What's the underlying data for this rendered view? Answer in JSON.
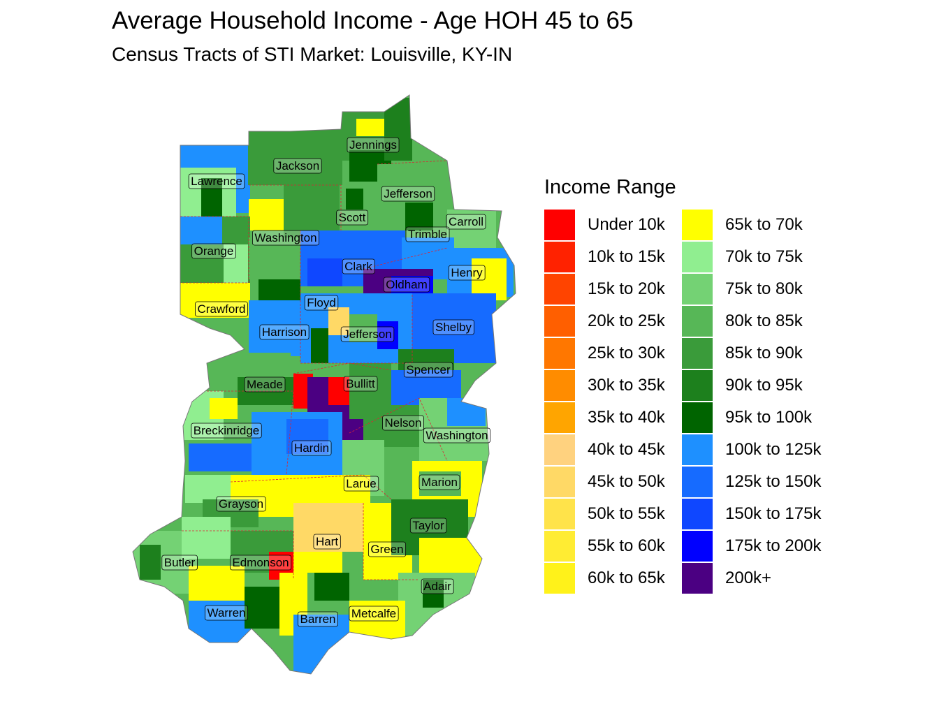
{
  "title": "Average Household Income - Age HOH 45 to 65",
  "subtitle": "Census Tracts of STI Market: Louisville, KY-IN",
  "legend": {
    "title": "Income Range",
    "items": [
      {
        "label": "Under 10k",
        "color": "#ff0000"
      },
      {
        "label": "10k to 15k",
        "color": "#ff2200"
      },
      {
        "label": "15k to 20k",
        "color": "#ff4400"
      },
      {
        "label": "20k to 25k",
        "color": "#ff5f00"
      },
      {
        "label": "25k to 30k",
        "color": "#ff7700"
      },
      {
        "label": "30k to 35k",
        "color": "#ff8c00"
      },
      {
        "label": "35k to 40k",
        "color": "#ffa500"
      },
      {
        "label": "40k to 45k",
        "color": "#ffd27f"
      },
      {
        "label": "45k to 50k",
        "color": "#ffd966"
      },
      {
        "label": "50k to 55k",
        "color": "#ffe34a"
      },
      {
        "label": "55k to 60k",
        "color": "#ffec33"
      },
      {
        "label": "60k to 65k",
        "color": "#fff21a"
      },
      {
        "label": "65k to 70k",
        "color": "#ffff00"
      },
      {
        "label": "70k to 75k",
        "color": "#90ee90"
      },
      {
        "label": "75k to 80k",
        "color": "#74d274"
      },
      {
        "label": "80k to 85k",
        "color": "#57b757"
      },
      {
        "label": "85k to 90k",
        "color": "#3a9b3a"
      },
      {
        "label": "90k to 95k",
        "color": "#1d801d"
      },
      {
        "label": "95k to 100k",
        "color": "#006400"
      },
      {
        "label": "100k to 125k",
        "color": "#1e90ff"
      },
      {
        "label": "125k to 150k",
        "color": "#166bff"
      },
      {
        "label": "150k to 175k",
        "color": "#0f47ff"
      },
      {
        "label": "175k to 200k",
        "color": "#0000ff"
      },
      {
        "label": "200k+",
        "color": "#4b0082"
      }
    ]
  },
  "counties": [
    {
      "name": "Jennings"
    },
    {
      "name": "Jackson"
    },
    {
      "name": "Lawrence"
    },
    {
      "name": "Jefferson"
    },
    {
      "name": "Scott"
    },
    {
      "name": "Carroll"
    },
    {
      "name": "Washington"
    },
    {
      "name": "Trimble"
    },
    {
      "name": "Orange"
    },
    {
      "name": "Clark"
    },
    {
      "name": "Henry"
    },
    {
      "name": "Oldham"
    },
    {
      "name": "Crawford"
    },
    {
      "name": "Floyd"
    },
    {
      "name": "Shelby"
    },
    {
      "name": "Harrison"
    },
    {
      "name": "Jefferson"
    },
    {
      "name": "Spencer"
    },
    {
      "name": "Meade"
    },
    {
      "name": "Bullitt"
    },
    {
      "name": "Nelson"
    },
    {
      "name": "Breckinridge"
    },
    {
      "name": "Washington"
    },
    {
      "name": "Hardin"
    },
    {
      "name": "Larue"
    },
    {
      "name": "Marion"
    },
    {
      "name": "Grayson"
    },
    {
      "name": "Taylor"
    },
    {
      "name": "Hart"
    },
    {
      "name": "Green"
    },
    {
      "name": "Butler"
    },
    {
      "name": "Edmonson"
    },
    {
      "name": "Adair"
    },
    {
      "name": "Warren"
    },
    {
      "name": "Barren"
    },
    {
      "name": "Metcalfe"
    }
  ]
}
